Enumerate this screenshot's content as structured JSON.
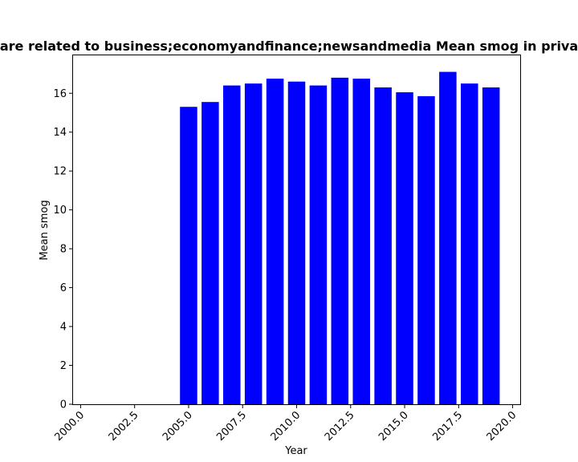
{
  "chart_data": {
    "type": "bar",
    "title": "are related to business;economyandfinance;newsandmedia Mean smog in priva",
    "xlabel": "Year",
    "ylabel": "Mean smog",
    "x": [
      2005,
      2006,
      2007,
      2008,
      2009,
      2010,
      2011,
      2012,
      2013,
      2014,
      2015,
      2016,
      2017,
      2018,
      2019
    ],
    "values": [
      15.3,
      15.55,
      16.4,
      16.5,
      16.75,
      16.6,
      16.4,
      16.8,
      16.75,
      16.3,
      16.05,
      15.85,
      17.1,
      16.5,
      16.3
    ],
    "xlim": [
      1999.65,
      2020.35
    ],
    "ylim": [
      0,
      17.95
    ],
    "xticks": [
      2000.0,
      2002.5,
      2005.0,
      2007.5,
      2010.0,
      2012.5,
      2015.0,
      2017.5,
      2020.0
    ],
    "xtick_labels": [
      "2000.0",
      "2002.5",
      "2005.0",
      "2007.5",
      "2010.0",
      "2012.5",
      "2015.0",
      "2017.5",
      "2020.0"
    ],
    "yticks": [
      0,
      2,
      4,
      6,
      8,
      10,
      12,
      14,
      16
    ],
    "ytick_labels": [
      "0",
      "2",
      "4",
      "6",
      "8",
      "10",
      "12",
      "14",
      "16"
    ],
    "bar_color": "#0000ff",
    "grid": false,
    "legend": "none"
  }
}
